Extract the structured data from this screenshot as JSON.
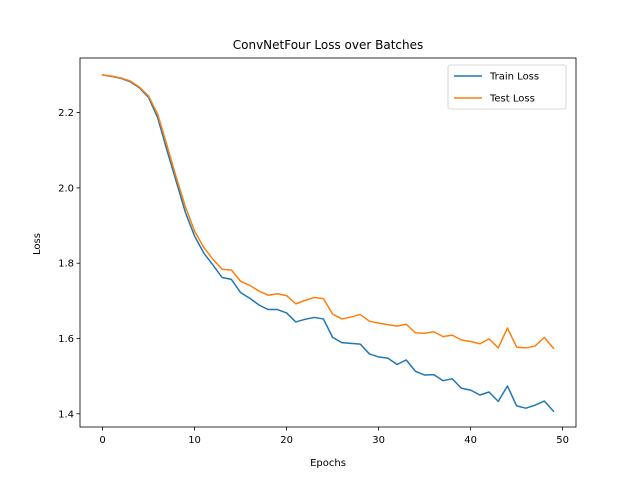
{
  "chart_data": {
    "type": "line",
    "title": "ConvNetFour Loss over Batches",
    "xlabel": "Epochs",
    "ylabel": "Loss",
    "xlim": [
      -2.45,
      51.45
    ],
    "ylim": [
      1.365,
      2.345
    ],
    "xticks": [
      0,
      10,
      20,
      30,
      40,
      50
    ],
    "yticks": [
      1.4,
      1.6,
      1.8,
      2.0,
      2.2
    ],
    "ytick_labels": [
      "1.4",
      "1.6",
      "1.8",
      "2.0",
      "2.2"
    ],
    "grid": false,
    "legend_position": "top-right",
    "x": [
      0,
      1,
      2,
      3,
      4,
      5,
      6,
      7,
      8,
      9,
      10,
      11,
      12,
      13,
      14,
      15,
      16,
      17,
      18,
      19,
      20,
      21,
      22,
      23,
      24,
      25,
      26,
      27,
      28,
      29,
      30,
      31,
      32,
      33,
      34,
      35,
      36,
      37,
      38,
      39,
      40,
      41,
      42,
      43,
      44,
      45,
      46,
      47,
      48,
      49
    ],
    "series": [
      {
        "name": "Train Loss",
        "color": "#1f77b4",
        "values": [
          2.3,
          2.296,
          2.291,
          2.282,
          2.266,
          2.24,
          2.186,
          2.1,
          2.018,
          1.935,
          1.872,
          1.827,
          1.795,
          1.762,
          1.757,
          1.722,
          1.707,
          1.689,
          1.677,
          1.677,
          1.668,
          1.644,
          1.651,
          1.656,
          1.652,
          1.603,
          1.589,
          1.587,
          1.585,
          1.559,
          1.551,
          1.548,
          1.531,
          1.543,
          1.513,
          1.503,
          1.504,
          1.488,
          1.493,
          1.468,
          1.463,
          1.45,
          1.458,
          1.433,
          1.474,
          1.421,
          1.415,
          1.423,
          1.434,
          1.407
        ]
      },
      {
        "name": "Test Loss",
        "color": "#ff7f0e",
        "values": [
          2.3,
          2.297,
          2.292,
          2.284,
          2.268,
          2.244,
          2.195,
          2.113,
          2.029,
          1.95,
          1.885,
          1.842,
          1.81,
          1.784,
          1.782,
          1.752,
          1.741,
          1.726,
          1.715,
          1.719,
          1.714,
          1.692,
          1.701,
          1.709,
          1.706,
          1.665,
          1.652,
          1.657,
          1.664,
          1.646,
          1.641,
          1.637,
          1.633,
          1.638,
          1.615,
          1.614,
          1.618,
          1.605,
          1.609,
          1.596,
          1.592,
          1.586,
          1.599,
          1.575,
          1.628,
          1.577,
          1.575,
          1.58,
          1.603,
          1.574
        ]
      }
    ]
  }
}
